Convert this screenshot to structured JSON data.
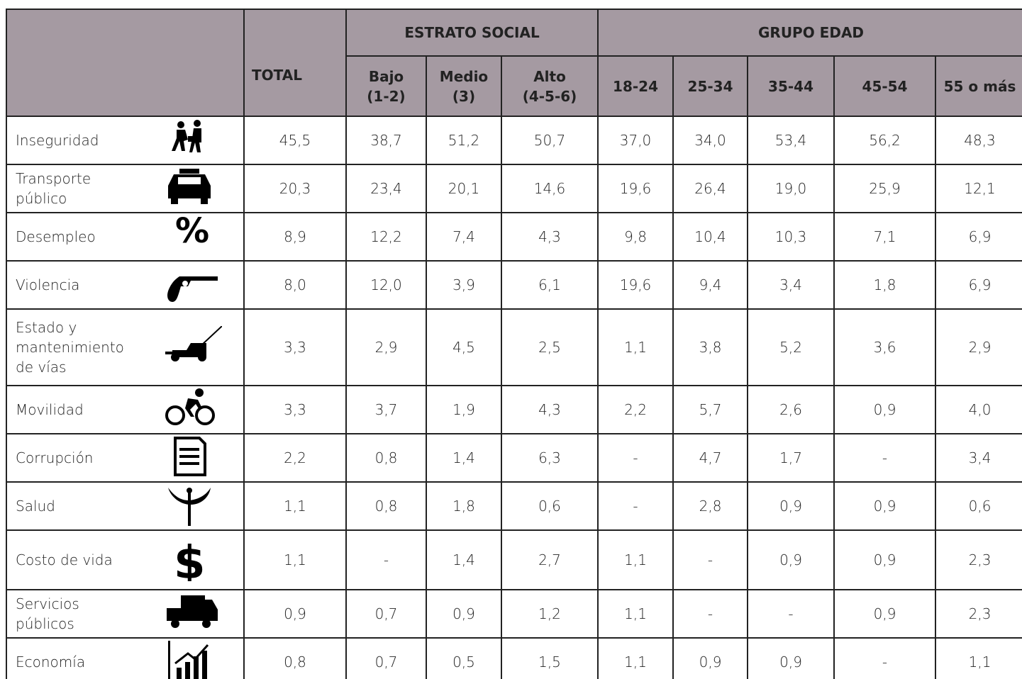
{
  "header": {
    "total": "TOTAL",
    "estrato": "ESTRATO SOCIAL",
    "grupo": "GRUPO EDAD",
    "columns": [
      "Bajo\n(1-2)",
      "Medio\n(3)",
      "Alto\n(4-5-6)",
      "18-24",
      "25-34",
      "35-44",
      "45-54",
      "55 o más"
    ]
  },
  "rows": [
    {
      "label": "Inseguridad",
      "values": [
        "45,5",
        "38,7",
        "51,2",
        "50,7",
        "37,0",
        "34,0",
        "53,4",
        "56,2",
        "48,3"
      ]
    },
    {
      "label": "Transporte público",
      "values": [
        "20,3",
        "23,4",
        "20,1",
        "14,6",
        "19,6",
        "26,4",
        "19,0",
        "25,9",
        "12,1"
      ]
    },
    {
      "label": "Desempleo",
      "values": [
        "8,9",
        "12,2",
        "7,4",
        "4,3",
        "9,8",
        "10,4",
        "10,3",
        "7,1",
        "6,9"
      ]
    },
    {
      "label": "Violencia",
      "values": [
        "8,0",
        "12,0",
        "3,9",
        "6,1",
        "19,6",
        "9,4",
        "3,4",
        "1,8",
        "6,9"
      ]
    },
    {
      "label": "Estado y mantenimiento de vías",
      "values": [
        "3,3",
        "2,9",
        "4,5",
        "2,5",
        "1,1",
        "3,8",
        "5,2",
        "3,6",
        "2,9"
      ]
    },
    {
      "label": "Movilidad",
      "values": [
        "3,3",
        "3,7",
        "1,9",
        "4,3",
        "2,2",
        "5,7",
        "2,6",
        "0,9",
        "4,0"
      ]
    },
    {
      "label": "Corrupción",
      "values": [
        "2,2",
        "0,8",
        "1,4",
        "6,3",
        "-",
        "4,7",
        "1,7",
        "-",
        "3,4"
      ]
    },
    {
      "label": "Salud",
      "values": [
        "1,1",
        "0,8",
        "1,8",
        "0,6",
        "-",
        "2,8",
        "0,9",
        "0,9",
        "0,6"
      ]
    },
    {
      "label": "Costo de vida",
      "values": [
        "1,1",
        "-",
        "1,4",
        "2,7",
        "1,1",
        "-",
        "0,9",
        "0,9",
        "2,3"
      ]
    },
    {
      "label": "Servicios públicos",
      "values": [
        "0,9",
        "0,7",
        "0,9",
        "1,2",
        "1,1",
        "-",
        "-",
        "0,9",
        "2,3"
      ]
    },
    {
      "label": "Economía",
      "values": [
        "0,8",
        "0,7",
        "0,5",
        "1,5",
        "1,1",
        "0,9",
        "0,9",
        "-",
        "1,1"
      ]
    }
  ]
}
